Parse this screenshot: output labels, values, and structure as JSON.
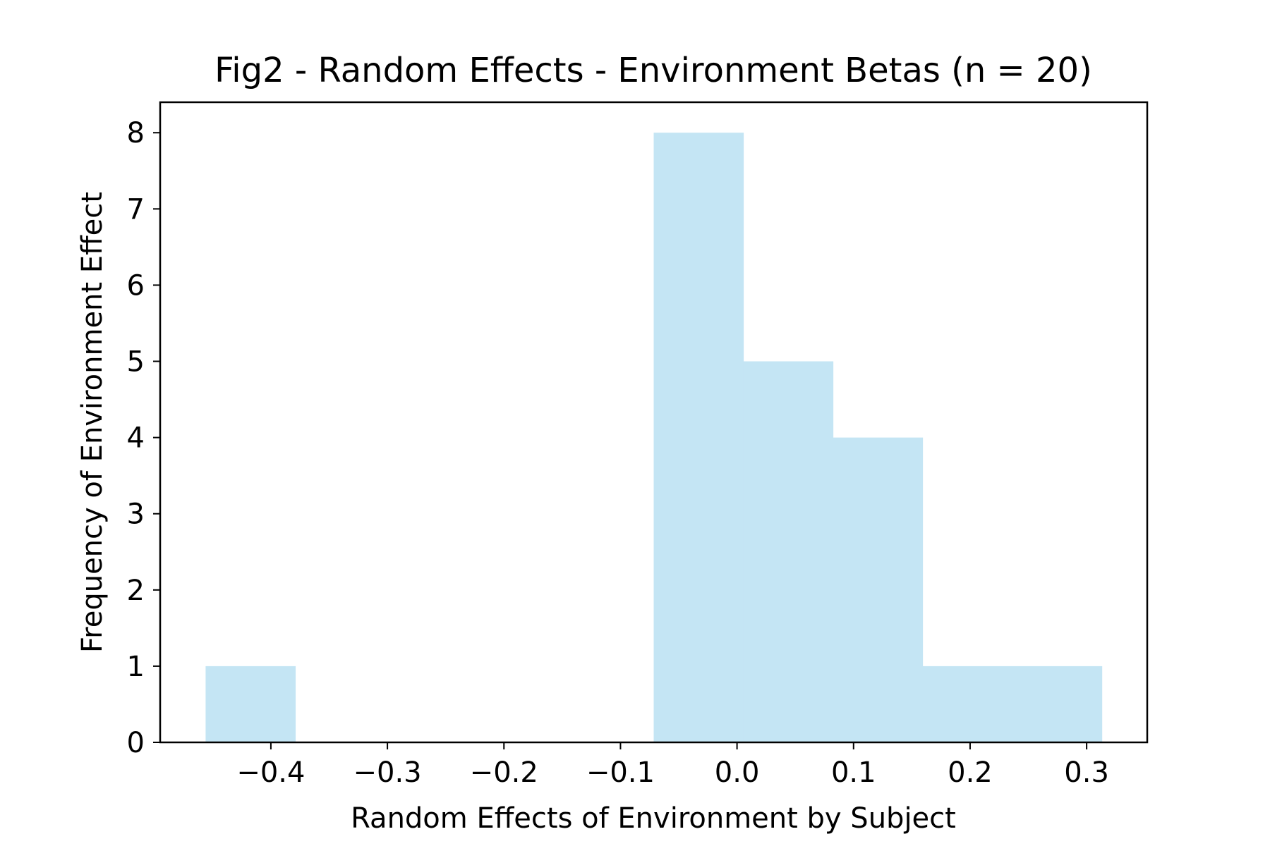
{
  "chart_data": {
    "type": "bar",
    "title": "Fig2 - Random Effects - Environment Betas (n = 20)",
    "xlabel": "Random Effects of Environment by Subject",
    "ylabel": "Frequency of Environment Effect",
    "bin_edges": [
      -0.456,
      -0.3791,
      -0.3022,
      -0.2253,
      -0.1484,
      -0.0715,
      0.0054,
      0.0823,
      0.1592,
      0.2361,
      0.313
    ],
    "values": [
      1,
      0,
      0,
      0,
      0,
      8,
      5,
      4,
      1,
      1
    ],
    "xlim": [
      -0.495,
      0.352
    ],
    "ylim": [
      0,
      8.4
    ],
    "xticks": [
      -0.4,
      -0.3,
      -0.2,
      -0.1,
      0.0,
      0.1,
      0.2,
      0.3
    ],
    "xtick_labels": [
      "−0.4",
      "−0.3",
      "−0.2",
      "−0.1",
      "0.0",
      "0.1",
      "0.2",
      "0.3"
    ],
    "yticks": [
      0,
      1,
      2,
      3,
      4,
      5,
      6,
      7,
      8
    ],
    "ytick_labels": [
      "0",
      "1",
      "2",
      "3",
      "4",
      "5",
      "6",
      "7",
      "8"
    ],
    "bar_color": "#c4e5f4",
    "grid": false,
    "legend": "none"
  }
}
